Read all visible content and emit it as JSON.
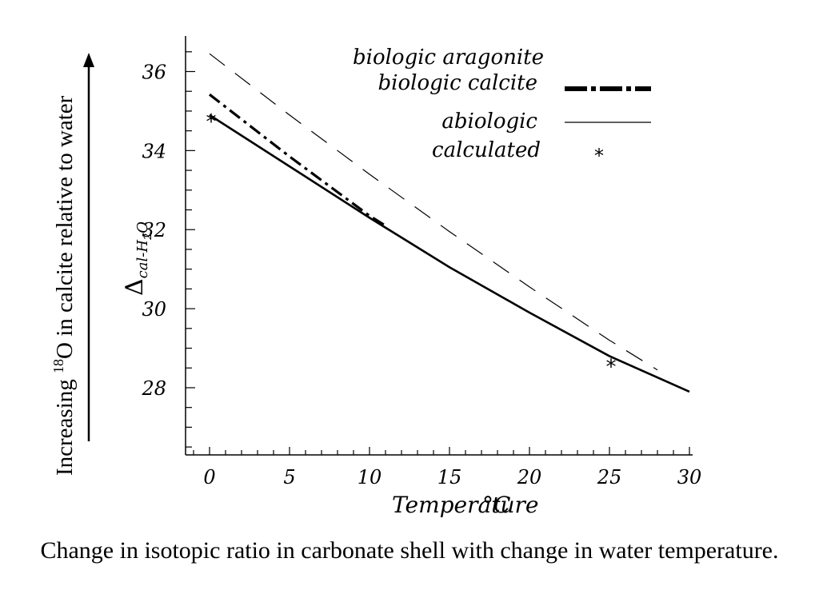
{
  "chart_data": {
    "type": "line",
    "x_label_text": "Temperature",
    "x_unit": "°C",
    "y_label": "Δcal-H2O",
    "y_label_main": "Δ",
    "y_label_sub": "cal-H",
    "y_label_sub2": "2",
    "y_label_sub3": "O",
    "side_label_pre": "Increasing ",
    "side_label_sup": "18",
    "side_label_post": "O in calcite relative to water",
    "xlim": [
      -1.5,
      30.2
    ],
    "ylim": [
      26.3,
      36.9
    ],
    "x_ticks": [
      0,
      5,
      10,
      15,
      20,
      25,
      30
    ],
    "x_tick_labels": [
      "0",
      "5",
      "10",
      "15",
      "20",
      "25",
      "30"
    ],
    "y_ticks": [
      28,
      30,
      32,
      34,
      36
    ],
    "y_tick_labels": [
      "28",
      "30",
      "32",
      "34",
      "36"
    ],
    "grid": false,
    "legend_position": "top-right",
    "series": [
      {
        "name": "biologic aragonite",
        "style": "long-dash",
        "color": "#000000",
        "x": [
          0,
          5,
          10,
          15,
          20,
          25,
          28
        ],
        "y": [
          36.45,
          34.9,
          33.4,
          31.95,
          30.55,
          29.2,
          28.45
        ]
      },
      {
        "name": "biologic calcite",
        "style": "dash-dot",
        "color": "#000000",
        "x": [
          0,
          5,
          10,
          11
        ],
        "y": [
          35.42,
          33.85,
          32.35,
          32.1
        ]
      },
      {
        "name": "abiologic",
        "style": "solid",
        "color": "#000000",
        "x": [
          0,
          5,
          10,
          15,
          20,
          25,
          30
        ],
        "y": [
          34.9,
          33.6,
          32.3,
          31.05,
          29.9,
          28.8,
          27.9
        ]
      },
      {
        "name": "calculated",
        "style": "marker",
        "marker": "*",
        "color": "#000000",
        "x": [
          0,
          25
        ],
        "y": [
          34.8,
          28.6
        ]
      }
    ]
  },
  "caption": "Change in isotopic ratio in carbonate shell with change in water temperature."
}
